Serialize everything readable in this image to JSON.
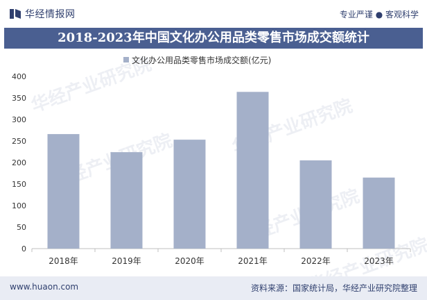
{
  "header": {
    "brand": "华经情报网",
    "slogan": "专业严谨 ● 客观科学"
  },
  "title": "2018-2023年中国文化办公用品类零售市场成交额统计",
  "watermark": "华经产业研究院",
  "footer": {
    "site": "www.huaon.com",
    "source": "资料来源：国家统计局，华经产业研究院整理"
  },
  "colors": {
    "bar": "#a4b0c9",
    "title_bg": "#4a5f91",
    "text": "#2f3f6e"
  },
  "chart_data": {
    "type": "bar",
    "title": "2018-2023年中国文化办公用品类零售市场成交额统计",
    "categories": [
      "2018年",
      "2019年",
      "2020年",
      "2021年",
      "2022年",
      "2023年"
    ],
    "series": [
      {
        "name": "文化办公用品类零售市场成交额(亿元)",
        "values": [
          266,
          224,
          253,
          364,
          205,
          165
        ]
      }
    ],
    "yticks": [
      "0",
      "50",
      "100",
      "150",
      "200",
      "250",
      "300",
      "350",
      "400"
    ],
    "ylim": [
      0,
      400
    ],
    "xlabel": "",
    "ylabel": "",
    "grid": false,
    "legend": "top-center"
  }
}
